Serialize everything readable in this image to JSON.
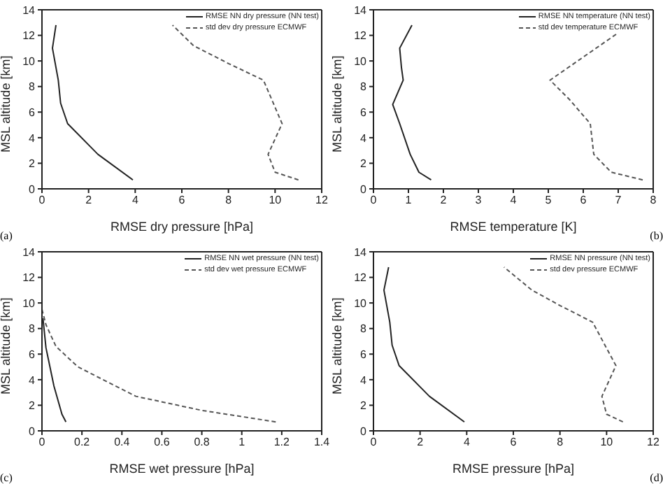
{
  "chart_data": [
    {
      "type": "line",
      "xlabel": "RMSE dry pressure [hPa]",
      "ylabel": "MSL altitude [km]",
      "annotations": [
        "(a)"
      ],
      "xlim": [
        0,
        12
      ],
      "xticks": [
        0,
        2,
        4,
        6,
        8,
        10,
        12
      ],
      "ylim": [
        0,
        14
      ],
      "yticks": [
        0,
        2,
        4,
        6,
        8,
        10,
        12,
        14
      ],
      "legend": "top right",
      "series": [
        {
          "name": "RMSE NN dry pressure (NN test)",
          "color": "#222222",
          "line_style": "solid",
          "x": [
            3.9,
            2.4,
            1.1,
            0.8,
            0.7,
            0.45,
            0.6
          ],
          "values": [
            0.7,
            2.7,
            5.1,
            6.7,
            8.5,
            11,
            12.8
          ]
        },
        {
          "name": "std dev dry pressure ECMWF",
          "color": "#555555",
          "line_style": "dashed",
          "x": [
            11,
            10,
            9.7,
            10.3,
            9.5,
            8,
            6.5,
            5.6
          ],
          "values": [
            0.7,
            1.3,
            2.7,
            5.1,
            8.5,
            9.8,
            11.2,
            12.8
          ]
        }
      ]
    },
    {
      "type": "line",
      "xlabel": "RMSE temperature [K]",
      "ylabel": "MSL altitude [km]",
      "annotations": [
        "(b)"
      ],
      "xlim": [
        0,
        8
      ],
      "xticks": [
        0,
        1,
        2,
        3,
        4,
        5,
        6,
        7,
        8
      ],
      "ylim": [
        0,
        14
      ],
      "yticks": [
        0,
        2,
        4,
        6,
        8,
        10,
        12,
        14
      ],
      "legend": "top right",
      "series": [
        {
          "name": "RMSE NN temperature (NN test)",
          "color": "#222222",
          "line_style": "solid",
          "x": [
            1.65,
            1.3,
            1.05,
            0.75,
            0.55,
            0.85,
            0.8,
            0.75,
            1.1
          ],
          "values": [
            0.7,
            1.3,
            2.7,
            5.1,
            6.6,
            8.5,
            9.5,
            11,
            12.8
          ]
        },
        {
          "name": "std dev temperature ECMWF",
          "color": "#555555",
          "line_style": "dashed",
          "x": [
            7.7,
            6.8,
            6.3,
            6.2,
            5.6,
            5.05,
            7
          ],
          "values": [
            0.7,
            1.3,
            2.7,
            5.1,
            7,
            8.5,
            12.2
          ]
        }
      ]
    },
    {
      "type": "line",
      "xlabel": "RMSE wet pressure [hPa]",
      "ylabel": "MSL altitude [km]",
      "annotations": [
        "(c)"
      ],
      "xlim": [
        0,
        1.4
      ],
      "xticks": [
        0,
        0.2,
        0.4,
        0.6,
        0.8,
        1,
        1.2,
        1.4
      ],
      "ylim": [
        0,
        14
      ],
      "yticks": [
        0,
        2,
        4,
        6,
        8,
        10,
        12,
        14
      ],
      "legend": "top right",
      "series": [
        {
          "name": "RMSE NN wet pressure (NN test)",
          "color": "#222222",
          "line_style": "solid",
          "x": [
            0.12,
            0.1,
            0.06,
            0.02,
            0.005
          ],
          "values": [
            0.7,
            1.3,
            3.5,
            6.5,
            8.8
          ]
        },
        {
          "name": "std dev wet pressure ECMWF",
          "color": "#555555",
          "line_style": "dashed",
          "x": [
            1.17,
            0.8,
            0.47,
            0.18,
            0.07,
            0.02,
            0
          ],
          "values": [
            0.7,
            1.6,
            2.7,
            5,
            6.6,
            8.3,
            9.5
          ]
        }
      ]
    },
    {
      "type": "line",
      "xlabel": "RMSE pressure [hPa]",
      "ylabel": "MSL altitude [km]",
      "annotations": [
        "(d)"
      ],
      "xlim": [
        0,
        12
      ],
      "xticks": [
        0,
        2,
        4,
        6,
        8,
        10,
        12
      ],
      "ylim": [
        0,
        14
      ],
      "yticks": [
        0,
        2,
        4,
        6,
        8,
        10,
        12,
        14
      ],
      "legend": "top right",
      "series": [
        {
          "name": "RMSE NN pressure (NN test)",
          "color": "#222222",
          "line_style": "solid",
          "x": [
            3.9,
            2.4,
            1.1,
            0.8,
            0.7,
            0.45,
            0.65
          ],
          "values": [
            0.7,
            2.7,
            5.1,
            6.7,
            8.5,
            11,
            12.8
          ]
        },
        {
          "name": "std dev pressure ECMWF",
          "color": "#555555",
          "line_style": "dashed",
          "x": [
            10.7,
            10,
            9.8,
            10.4,
            9.4,
            8,
            6.8,
            5.6
          ],
          "values": [
            0.7,
            1.3,
            2.7,
            5.1,
            8.5,
            9.8,
            11,
            12.8
          ]
        }
      ]
    }
  ]
}
